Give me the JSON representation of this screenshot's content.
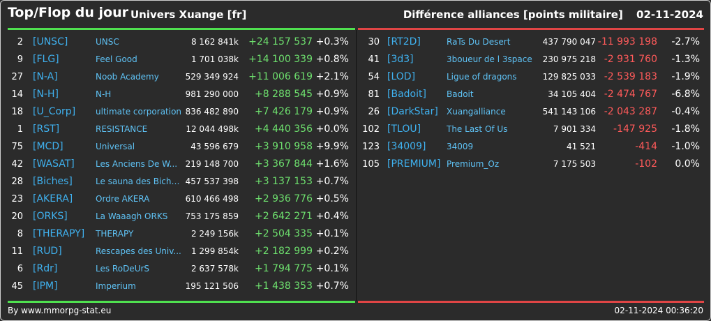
{
  "header": {
    "title": "Top/Flop du jour",
    "universe": "Univers Xuange [fr]",
    "category": "Différence alliances [points militaire]",
    "date": "02-11-2024"
  },
  "top": [
    {
      "rank": "2",
      "tag": "[UNSC]",
      "name": "UNSC",
      "points": "8 162 841k",
      "diff": "+24 157 537",
      "pct": "+0.3%"
    },
    {
      "rank": "9",
      "tag": "[FLG]",
      "name": "Feel Good",
      "points": "1 701 038k",
      "diff": "+14 100 339",
      "pct": "+0.8%"
    },
    {
      "rank": "27",
      "tag": "[N-A]",
      "name": "Noob Academy",
      "points": "529 349 924",
      "diff": "+11 006 619",
      "pct": "+2.1%"
    },
    {
      "rank": "14",
      "tag": "[N-H]",
      "name": "N-H",
      "points": "981 290 000",
      "diff": "+8 288 545",
      "pct": "+0.9%"
    },
    {
      "rank": "18",
      "tag": "[U_Corp]",
      "name": "ultimate corporation",
      "points": "836 482 890",
      "diff": "+7 426 179",
      "pct": "+0.9%"
    },
    {
      "rank": "1",
      "tag": "[RST]",
      "name": "RESISTANCE",
      "points": "12 044 498k",
      "diff": "+4 440 356",
      "pct": "+0.0%"
    },
    {
      "rank": "75",
      "tag": "[MCD]",
      "name": "Universal",
      "points": "43 596 679",
      "diff": "+3 910 958",
      "pct": "+9.9%"
    },
    {
      "rank": "42",
      "tag": "[WASAT]",
      "name": "Les Anciens De W...",
      "points": "219 148 700",
      "diff": "+3 367 844",
      "pct": "+1.6%"
    },
    {
      "rank": "28",
      "tag": "[Biches]",
      "name": "Le sauna des Biche...",
      "points": "457 537 398",
      "diff": "+3 137 153",
      "pct": "+0.7%"
    },
    {
      "rank": "23",
      "tag": "[AKERA]",
      "name": "Ordre AKERA",
      "points": "610 466 498",
      "diff": "+2 936 776",
      "pct": "+0.5%"
    },
    {
      "rank": "20",
      "tag": "[ORKS]",
      "name": "La Waaagh ORKS",
      "points": "753 175 859",
      "diff": "+2 642 271",
      "pct": "+0.4%"
    },
    {
      "rank": "8",
      "tag": "[THERAPY]",
      "name": "THERAPY",
      "points": "2 249 156k",
      "diff": "+2 504 335",
      "pct": "+0.1%"
    },
    {
      "rank": "11",
      "tag": "[RUD]",
      "name": "Rescapes des Univ...",
      "points": "1 299 854k",
      "diff": "+2 182 999",
      "pct": "+0.2%"
    },
    {
      "rank": "6",
      "tag": "[Rdr]",
      "name": "Les RoDeUrS",
      "points": "2 637 578k",
      "diff": "+1 794 775",
      "pct": "+0.1%"
    },
    {
      "rank": "45",
      "tag": "[IPM]",
      "name": "Imperium",
      "points": "195 121 506",
      "diff": "+1 438 353",
      "pct": "+0.7%"
    }
  ],
  "flop": [
    {
      "rank": "30",
      "tag": "[RT2D]",
      "name": "RaTs Du Desert",
      "points": "437 790 047",
      "diff": "-11 993 198",
      "pct": "-2.7%"
    },
    {
      "rank": "41",
      "tag": "[3d3]",
      "name": "3boueur de l 3space",
      "points": "230 975 218",
      "diff": "-2 931 760",
      "pct": "-1.3%"
    },
    {
      "rank": "54",
      "tag": "[LOD]",
      "name": "Ligue of dragons",
      "points": "129 825 033",
      "diff": "-2 539 183",
      "pct": "-1.9%"
    },
    {
      "rank": "81",
      "tag": "[Badoit]",
      "name": "Badoit",
      "points": "34 105 404",
      "diff": "-2 474 767",
      "pct": "-6.8%"
    },
    {
      "rank": "26",
      "tag": "[DarkStar]",
      "name": "Xuangalliance",
      "points": "541 143 106",
      "diff": "-2 043 287",
      "pct": "-0.4%"
    },
    {
      "rank": "102",
      "tag": "[TLOU]",
      "name": "The Last Of Us",
      "points": "7 901 334",
      "diff": "-147 925",
      "pct": "-1.8%"
    },
    {
      "rank": "123",
      "tag": "[34009]",
      "name": "34009",
      "points": "41 521",
      "diff": "-414",
      "pct": "-1.0%"
    },
    {
      "rank": "105",
      "tag": "[PREMIUM]",
      "name": "Premium_Oz",
      "points": "7 175 503",
      "diff": "-102",
      "pct": "0.0%"
    }
  ],
  "footer": {
    "credit": "By www.mmorpg-stat.eu",
    "timestamp": "02-11-2024 00:36:20"
  },
  "colors": {
    "top_accent": "#4fe04f",
    "flop_accent": "#e04545",
    "tag": "#3fb1ef",
    "name": "#5fc3f6"
  }
}
